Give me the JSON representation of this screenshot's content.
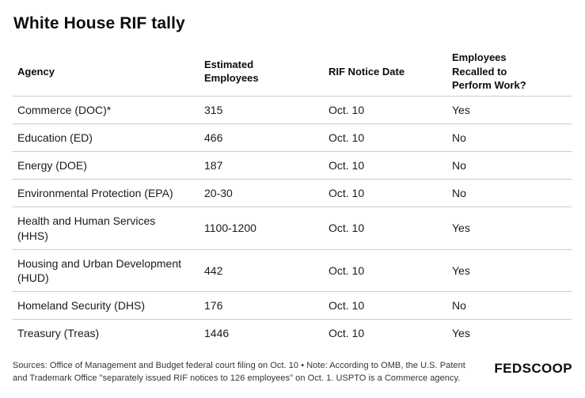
{
  "chart_data": {
    "type": "table",
    "title": "White House RIF tally",
    "columns": [
      "Agency",
      "Estimated Employees",
      "RIF Notice Date",
      "Employees Recalled to Perform Work?"
    ],
    "rows": [
      [
        "Commerce (DOC)*",
        "315",
        "Oct. 10",
        "Yes"
      ],
      [
        "Education (ED)",
        "466",
        "Oct. 10",
        "No"
      ],
      [
        "Energy (DOE)",
        "187",
        "Oct. 10",
        "No"
      ],
      [
        "Environmental Protection (EPA)",
        "20-30",
        "Oct. 10",
        "No"
      ],
      [
        "Health and Human Services (HHS)",
        "1100-1200",
        "Oct. 10",
        "Yes"
      ],
      [
        "Housing and Urban Development (HUD)",
        "442",
        "Oct. 10",
        "Yes"
      ],
      [
        "Homeland Security (DHS)",
        "176",
        "Oct. 10",
        "No"
      ],
      [
        "Treasury (Treas)",
        "1446",
        "Oct. 10",
        "Yes"
      ]
    ],
    "source_note": "Sources: Office of Management and Budget federal court filing on Oct. 10 • Note: According to OMB, the U.S. Patent and Trademark Office \"separately issued RIF notices to 126 employees\" on Oct. 1. USPTO is a Commerce agency.",
    "branding": "FEDSCOOP",
    "layout": {
      "grid": "horizontal-dividers-only",
      "legend": "none"
    },
    "colors": {
      "divider": "#cbcbcb",
      "text": "#1a1a1a",
      "heading": "#0d0d0d",
      "footnote": "#333333",
      "background": "#ffffff"
    }
  }
}
